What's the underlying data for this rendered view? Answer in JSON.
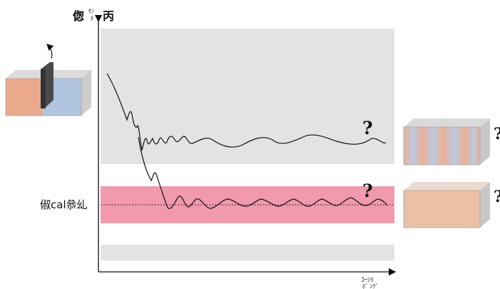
{
  "labels": {
    "y_axis_title_main": "偬",
    "y_axis_title_sub_top": "ｾﾝ",
    "y_axis_title_sub_bottom": "ﾁ",
    "y_axis_title_tail": "丙",
    "reference_line_label": "俶cal叅乣",
    "x_axis_label_line1": "ｺｰｼﾘ",
    "x_axis_label_line2": "ﾎﾞ ﾝｸﾞ"
  },
  "question_marks": {
    "upper_curve_end": "?",
    "lower_curve_end": "?",
    "upper_right_box": "?",
    "lower_right_box": "?"
  },
  "colors": {
    "gray_band": "#e3e3e3",
    "pink_band": "#f199ad",
    "warm_block": "#e89a78",
    "cool_block": "#a9bedd",
    "partition": "#4a4a4a",
    "mixed_block": "#e9b99a",
    "box_shade": "#c8c8c8"
  },
  "icons": {
    "lift_arrow": "curved-arrow-up-icon",
    "initial_state": "two-compartment-box-icon",
    "striped_state": "striped-box-icon",
    "uniform_state": "uniform-box-icon"
  }
}
